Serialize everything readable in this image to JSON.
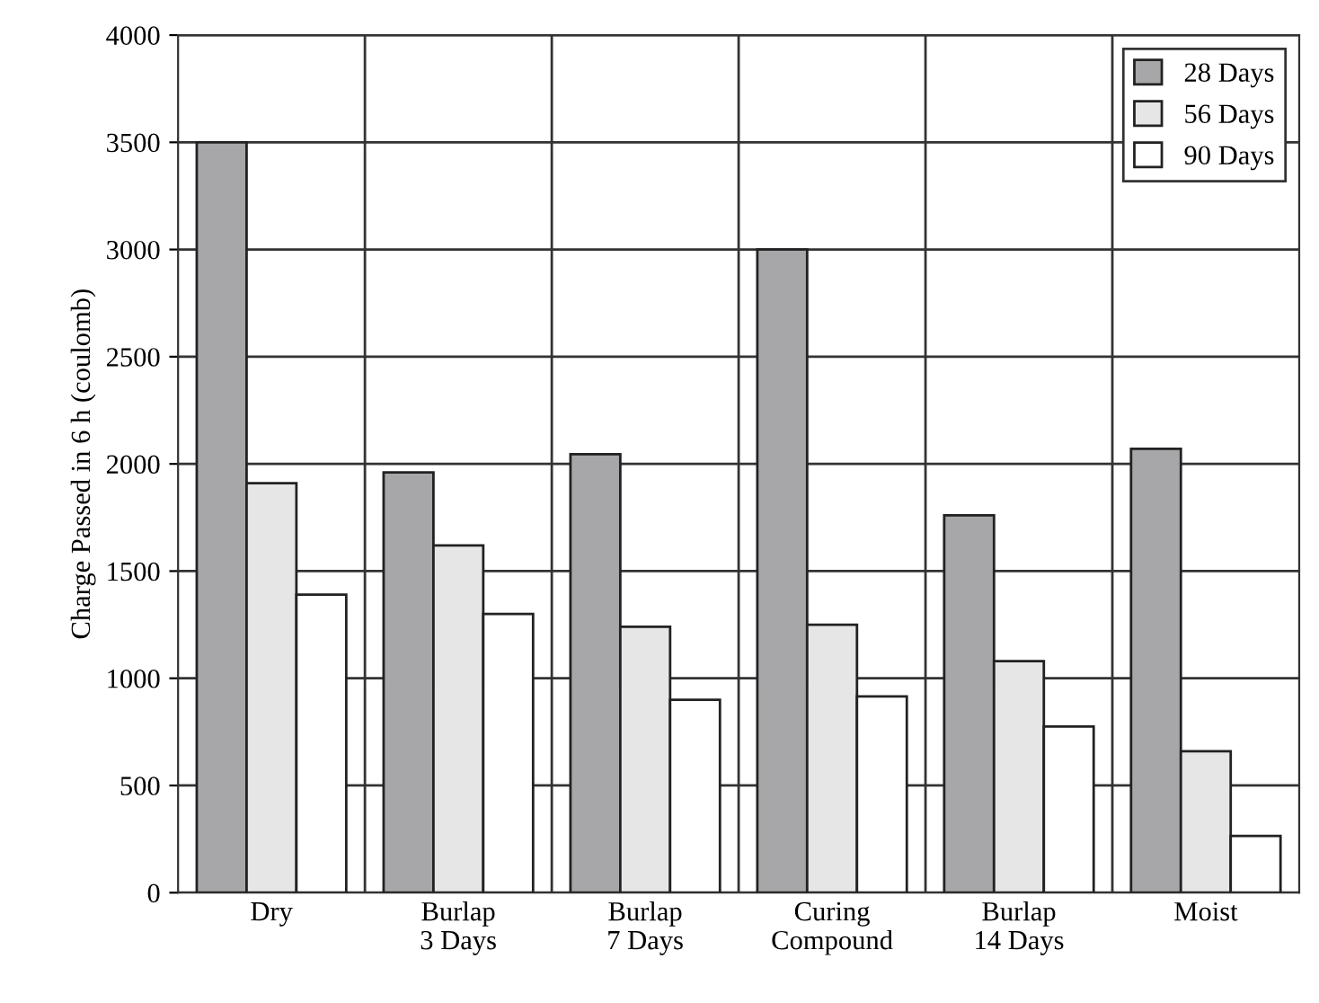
{
  "chart_data": {
    "type": "bar",
    "ylabel": "Charge Passed in 6 h (coulomb)",
    "categories": [
      "Dry",
      "Burlap\n3 Days",
      "Burlap\n7 Days",
      "Curing\nCompound",
      "Burlap\n14 Days",
      "Moist"
    ],
    "series": [
      {
        "name": "28 Days",
        "color": "#a7a7a9",
        "values": [
          3500,
          1960,
          2045,
          3000,
          1760,
          2070
        ]
      },
      {
        "name": "56 Days",
        "color": "#e6e6e6",
        "values": [
          1910,
          1620,
          1240,
          1250,
          1080,
          660
        ]
      },
      {
        "name": "90 Days",
        "color": "#ffffff",
        "values": [
          1390,
          1300,
          900,
          915,
          775,
          265
        ]
      }
    ],
    "ylim": [
      0,
      4000
    ],
    "yticks": [
      0,
      500,
      1000,
      1500,
      2000,
      2500,
      3000,
      3500,
      4000
    ],
    "grid": true,
    "legend": "top right"
  }
}
